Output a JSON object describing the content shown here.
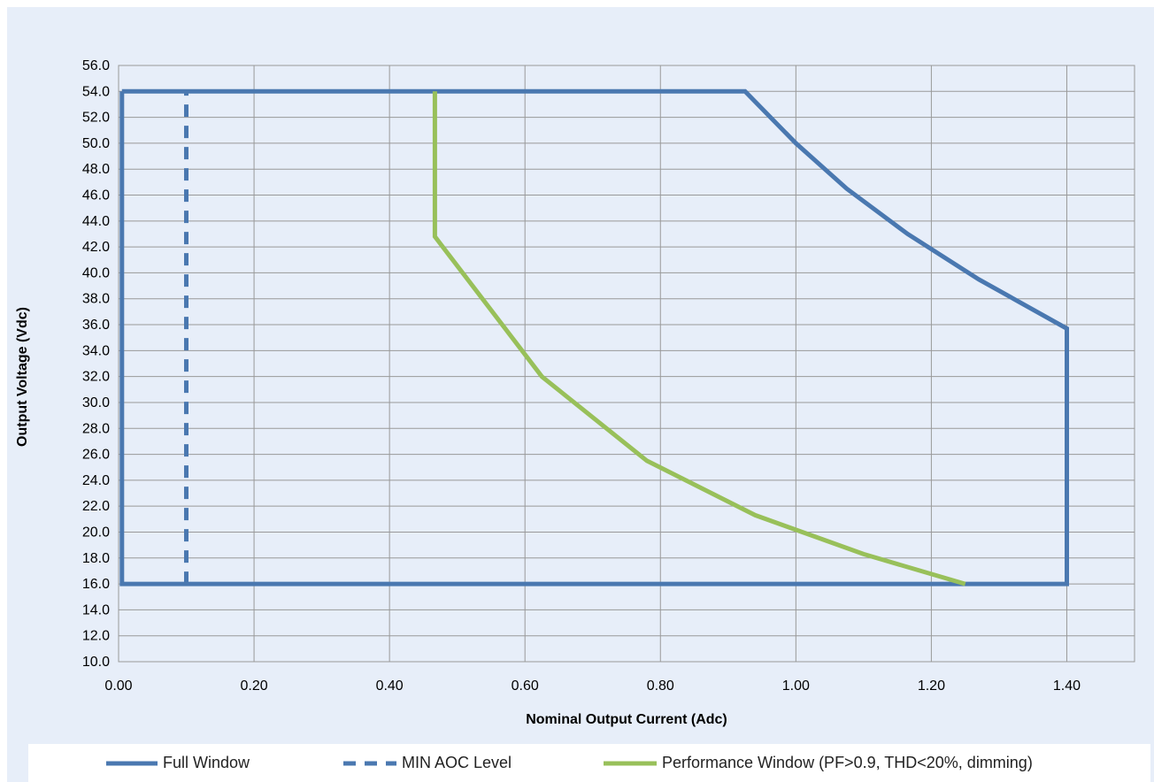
{
  "colors": {
    "full_window": "#4a78b0",
    "min_aoc": "#4a78b0",
    "performance": "#98c05a",
    "grid": "#999999",
    "background": "#e7eef9"
  },
  "chart_data": {
    "type": "line",
    "title": "",
    "xlabel": "Nominal Output Current (Adc)",
    "ylabel": "Output Voltage (Vdc)",
    "xlim": [
      0,
      1.5
    ],
    "ylim": [
      10,
      56
    ],
    "x_ticks": [
      "0.00",
      "0.20",
      "0.40",
      "0.60",
      "0.80",
      "1.00",
      "1.20",
      "1.40"
    ],
    "x_tick_values": [
      0,
      0.2,
      0.4,
      0.6,
      0.8,
      1.0,
      1.2,
      1.4
    ],
    "y_ticks": [
      "10.0",
      "12.0",
      "14.0",
      "16.0",
      "18.0",
      "20.0",
      "22.0",
      "24.0",
      "26.0",
      "28.0",
      "30.0",
      "32.0",
      "34.0",
      "36.0",
      "38.0",
      "40.0",
      "42.0",
      "44.0",
      "46.0",
      "48.0",
      "50.0",
      "52.0",
      "54.0",
      "56.0"
    ],
    "y_tick_values": [
      10,
      12,
      14,
      16,
      18,
      20,
      22,
      24,
      26,
      28,
      30,
      32,
      34,
      36,
      38,
      40,
      42,
      44,
      46,
      48,
      50,
      52,
      54,
      56
    ],
    "grid": true,
    "legend_position": "bottom",
    "series": [
      {
        "name": "Full Window",
        "style": "solid",
        "x": [
          0.005,
          0.925,
          1.0,
          1.075,
          1.165,
          1.27,
          1.4,
          1.4,
          0.005,
          0.005
        ],
        "y": [
          54.0,
          54.0,
          50.0,
          46.5,
          43.0,
          39.5,
          35.7,
          16.0,
          16.0,
          54.0
        ]
      },
      {
        "name": "MIN AOC Level",
        "style": "dashed",
        "x": [
          0.1,
          0.1
        ],
        "y": [
          16.0,
          54.0
        ]
      },
      {
        "name": "Performance Window (PF>0.9, THD<20%, dimming)",
        "style": "solid",
        "x": [
          0.467,
          0.467,
          0.625,
          0.78,
          0.94,
          1.1,
          1.25
        ],
        "y": [
          54.0,
          42.8,
          32.0,
          25.5,
          21.3,
          18.3,
          16.0
        ]
      }
    ]
  }
}
